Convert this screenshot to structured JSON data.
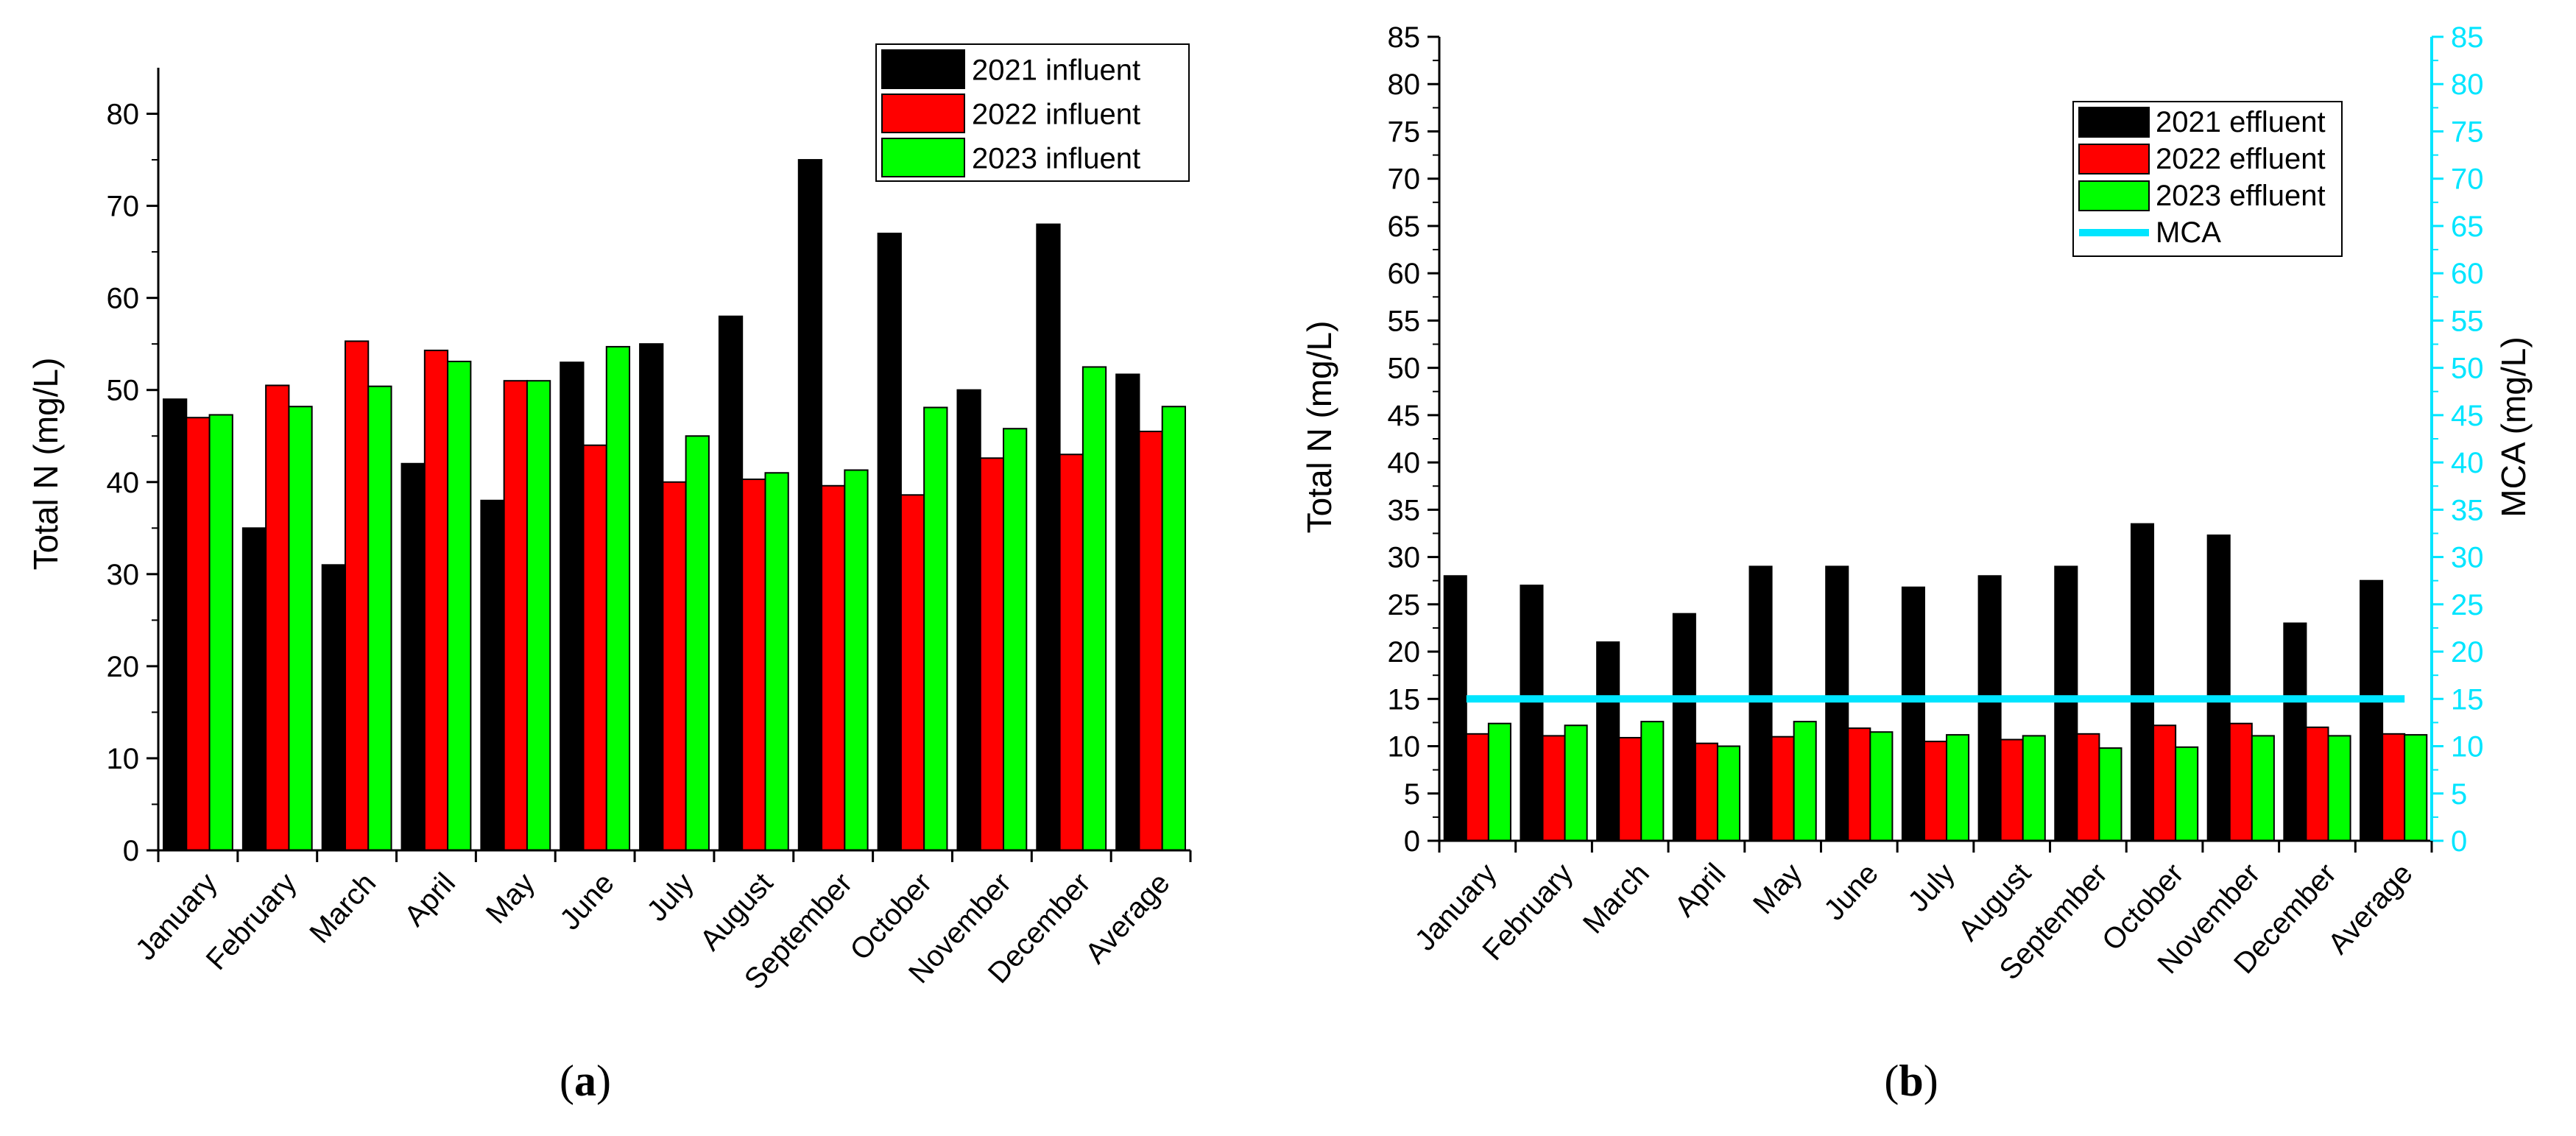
{
  "chart_data": [
    {
      "type": "bar",
      "panel_label": "a",
      "title": "",
      "xlabel": "",
      "ylabel": "Total N (mg/L)",
      "ylim": [
        0,
        85
      ],
      "yticks": [
        "0",
        "10",
        "20",
        "30",
        "40",
        "50",
        "60",
        "70",
        "80"
      ],
      "categories": [
        "January",
        "February",
        "March",
        "April",
        "May",
        "June",
        "July",
        "August",
        "September",
        "October",
        "November",
        "December",
        "Average"
      ],
      "series": [
        {
          "name": "2021 influent",
          "color": "#000000",
          "values": [
            49,
            35,
            31,
            42,
            38,
            53,
            55,
            58,
            75,
            67,
            50,
            68,
            51.7
          ]
        },
        {
          "name": "2022 influent",
          "color": "#ff0000",
          "values": [
            47,
            50.5,
            55.3,
            54.3,
            51,
            44,
            40,
            40.3,
            39.6,
            38.6,
            42.6,
            43,
            45.5
          ]
        },
        {
          "name": "2023 influent",
          "color": "#00ff00",
          "values": [
            47.3,
            48.2,
            50.4,
            53.1,
            51,
            54.7,
            45,
            41,
            41.3,
            48.1,
            45.8,
            52.5,
            48.2
          ]
        }
      ],
      "legend_position": "top-right",
      "grid": false
    },
    {
      "type": "bar",
      "panel_label": "b",
      "title": "",
      "xlabel": "",
      "ylabel": "Total N (mg/L)",
      "y2label": "MCA (mg/L)",
      "ylim": [
        0,
        85
      ],
      "y2lim": [
        0,
        85
      ],
      "yticks": [
        "0",
        "5",
        "10",
        "15",
        "20",
        "25",
        "30",
        "35",
        "40",
        "45",
        "50",
        "55",
        "60",
        "65",
        "70",
        "75",
        "80",
        "85"
      ],
      "categories": [
        "January",
        "February",
        "March",
        "April",
        "May",
        "June",
        "July",
        "August",
        "September",
        "October",
        "November",
        "December",
        "Average"
      ],
      "series": [
        {
          "name": "2021 effluent",
          "color": "#000000",
          "values": [
            28,
            27,
            21,
            24,
            29,
            29,
            26.8,
            28,
            29,
            33.5,
            32.3,
            23,
            27.5
          ]
        },
        {
          "name": "2022 effluent",
          "color": "#ff0000",
          "values": [
            11.3,
            11.1,
            10.9,
            10.3,
            11,
            11.9,
            10.5,
            10.7,
            11.3,
            12.2,
            12.4,
            12,
            11.3
          ]
        },
        {
          "name": "2023 effluent",
          "color": "#00ff00",
          "values": [
            12.4,
            12.2,
            12.6,
            10,
            12.6,
            11.5,
            11.2,
            11.1,
            9.8,
            9.9,
            11.1,
            11.1,
            11.2
          ]
        }
      ],
      "lines": [
        {
          "name": "MCA",
          "color": "#00e5ff",
          "value": 15,
          "axis": "right"
        }
      ],
      "legend_position": "top-right",
      "grid": false
    }
  ]
}
